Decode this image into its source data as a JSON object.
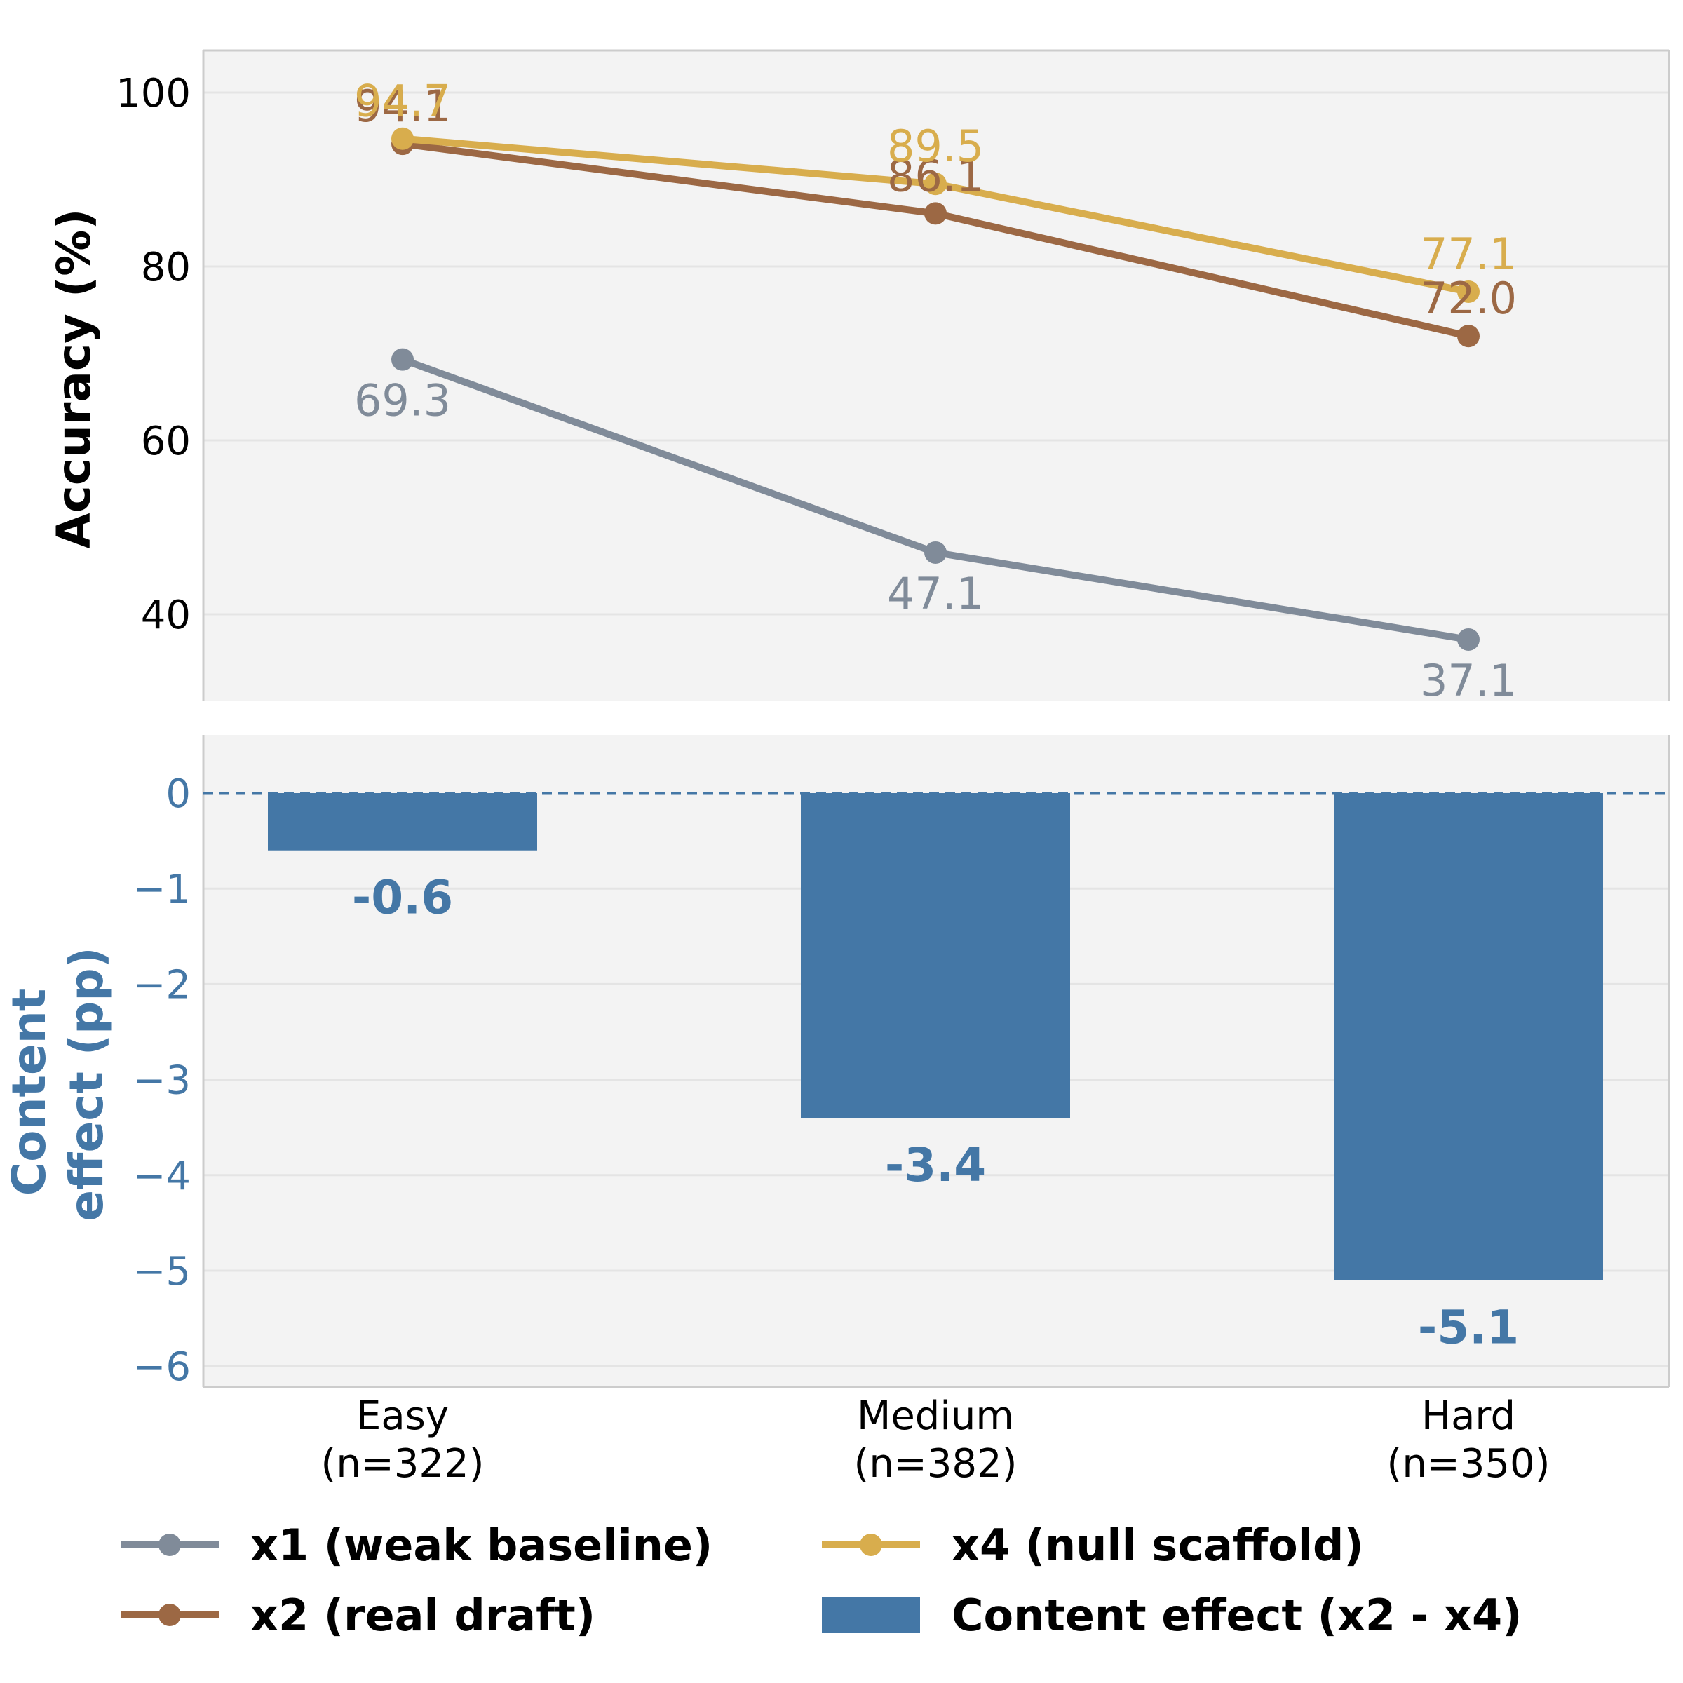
{
  "chart_data": [
    {
      "type": "line",
      "title": "",
      "ylabel": "Accuracy (%)",
      "xlabel": "",
      "ylim": [
        30,
        105
      ],
      "yticks": [
        40,
        60,
        80,
        100
      ],
      "ytick_labels": [
        "40",
        "60",
        "80",
        "100"
      ],
      "categories": [
        "Easy\n(n=322)",
        "Medium\n(n=382)",
        "Hard\n(n=350)"
      ],
      "grid": true,
      "series": [
        {
          "name": "x1 (weak baseline)",
          "color": "#808b99",
          "values": [
            69.3,
            47.1,
            37.1
          ],
          "labels": [
            "69.3",
            "47.1",
            "37.1"
          ],
          "label_position": "below"
        },
        {
          "name": "x2 (real draft)",
          "color": "#9c6844",
          "values": [
            94.1,
            86.1,
            72.0
          ],
          "labels": [
            "94.1",
            "86.1",
            "72.0"
          ],
          "label_position": "above"
        },
        {
          "name": "x4 (null scaffold)",
          "color": "#d8ad4d",
          "values": [
            94.7,
            89.5,
            77.1
          ],
          "labels": [
            "94.7",
            "89.5",
            "77.1"
          ],
          "label_position": "above"
        }
      ]
    },
    {
      "type": "bar",
      "title": "",
      "ylabel": "Content\neffect (pp)",
      "xlabel": "",
      "ylim": [
        -6.2,
        0.6
      ],
      "yticks": [
        0,
        -1,
        -2,
        -3,
        -4,
        -5,
        -6
      ],
      "ytick_labels": [
        "0",
        "−1",
        "−2",
        "−3",
        "−4",
        "−5",
        "−6"
      ],
      "categories": [
        "Easy\n(n=322)",
        "Medium\n(n=382)",
        "Hard\n(n=350)"
      ],
      "category_labels": [
        [
          "Easy",
          "(n=322)"
        ],
        [
          "Medium",
          "(n=382)"
        ],
        [
          "Hard",
          "(n=350)"
        ]
      ],
      "grid": true,
      "reference_line": 0,
      "series": [
        {
          "name": "Content effect (x2 - x4)",
          "color": "#4477a6",
          "values": [
            -0.6,
            -3.4,
            -5.1
          ],
          "labels": [
            "-0.6",
            "-3.4",
            "-5.1"
          ]
        }
      ]
    }
  ],
  "legend": {
    "placement": "bottom",
    "entries": [
      {
        "label": "x1 (weak baseline)",
        "kind": "line",
        "color": "#808b99"
      },
      {
        "label": "x4 (null scaffold)",
        "kind": "line",
        "color": "#d8ad4d"
      },
      {
        "label": "x2 (real draft)",
        "kind": "line",
        "color": "#9c6844"
      },
      {
        "label": "Content effect (x2 - x4)",
        "kind": "bar",
        "color": "#4477a6"
      }
    ]
  }
}
